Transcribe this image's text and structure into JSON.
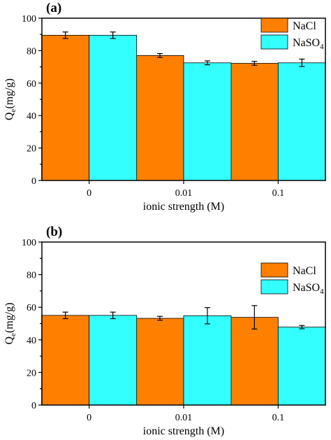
{
  "chart_data": [
    {
      "type": "bar",
      "panel_label": "(a)",
      "categories": [
        "0",
        "0.01",
        "0.1"
      ],
      "xlabel": "ionic strength (M)",
      "ylabel": {
        "base": "Q",
        "sub": "e",
        "rest": "(mg/g)"
      },
      "ylim": [
        0,
        100
      ],
      "yticks": [
        "0",
        "20",
        "40",
        "60",
        "80",
        "100"
      ],
      "legend_position": "top-right",
      "series": [
        {
          "name": "NaCl",
          "name_base": "NaCl",
          "name_sub": "",
          "color": "#ff8000",
          "values": [
            89.5,
            77.0,
            72.2
          ],
          "errors": [
            2.0,
            1.2,
            1.2
          ]
        },
        {
          "name": "NaSO4",
          "name_base": "NaSO",
          "name_sub": "4",
          "color": "#33ffff",
          "values": [
            89.5,
            72.5,
            72.5
          ],
          "errors": [
            2.0,
            1.2,
            2.3
          ]
        }
      ]
    },
    {
      "type": "bar",
      "panel_label": "(b)",
      "categories": [
        "0",
        "0.01",
        "0.1"
      ],
      "xlabel": "ionic strength (M)",
      "ylabel": {
        "base": "Q",
        "sub": "e",
        "rest": "(mg/g)"
      },
      "ylim": [
        0,
        100
      ],
      "yticks": [
        "0",
        "20",
        "40",
        "60",
        "80",
        "100"
      ],
      "legend_position": "top-right",
      "series": [
        {
          "name": "NaCl",
          "name_base": "NaCl",
          "name_sub": "",
          "color": "#ff8000",
          "values": [
            55.0,
            53.2,
            53.8
          ],
          "errors": [
            2.0,
            1.2,
            7.2
          ]
        },
        {
          "name": "NaSO4",
          "name_base": "NaSO",
          "name_sub": "4",
          "color": "#33ffff",
          "values": [
            55.0,
            54.8,
            47.8
          ],
          "errors": [
            2.0,
            5.0,
            1.0
          ]
        }
      ]
    }
  ]
}
